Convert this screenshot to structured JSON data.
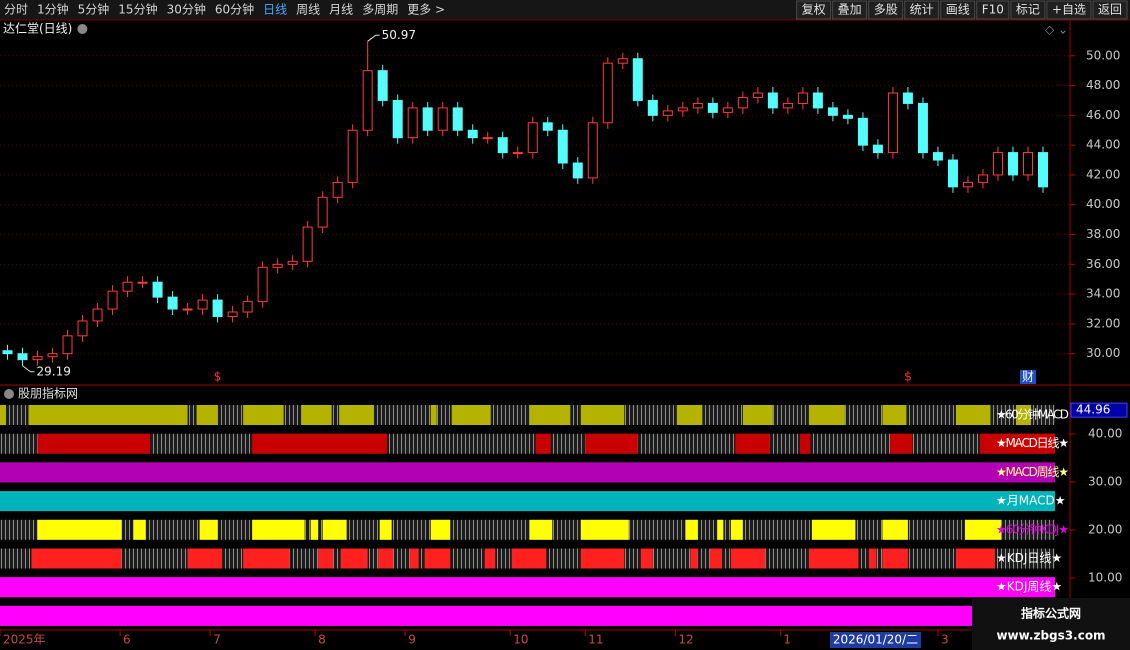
{
  "toolbar": {
    "periods": [
      "分时",
      "1分钟",
      "5分钟",
      "15分钟",
      "30分钟",
      "60分钟",
      "日线",
      "周线",
      "月线",
      "多周期",
      "更多 >"
    ],
    "active_period": 6,
    "buttons": [
      "复权",
      "叠加",
      "多股",
      "统计",
      "画线",
      "F10",
      "标记",
      "+自选",
      "返回"
    ]
  },
  "chart_data": [
    {
      "type": "candlestick",
      "title": "达仁堂(日线)",
      "up_color": "#ff3c3c",
      "down_color": "#54fcfc",
      "grid": true,
      "xlim": [
        0,
        70.3
      ],
      "ylim": [
        27.9,
        52.4
      ],
      "yticks": [
        {
          "value": 30,
          "label": "30.00"
        },
        {
          "value": 32,
          "label": "32.00"
        },
        {
          "value": 34,
          "label": "34.00"
        },
        {
          "value": 36,
          "label": "36.00"
        },
        {
          "value": 38,
          "label": "38.00"
        },
        {
          "value": 40,
          "label": "40.00"
        },
        {
          "value": 42,
          "label": "42.00"
        },
        {
          "value": 44,
          "label": "44.00"
        },
        {
          "value": 46,
          "label": "46.00"
        },
        {
          "value": 48,
          "label": "48.00"
        },
        {
          "value": 50,
          "label": "50.00"
        }
      ],
      "xticks": [
        {
          "value": 0,
          "label": "2025年"
        },
        {
          "value": 8,
          "label": "6"
        },
        {
          "value": 14,
          "label": "7"
        },
        {
          "value": 21,
          "label": "8"
        },
        {
          "value": 27,
          "label": "9"
        },
        {
          "value": 34,
          "label": "10"
        },
        {
          "value": 39,
          "label": "11"
        },
        {
          "value": 45,
          "label": "12"
        },
        {
          "value": 52,
          "label": "1"
        },
        {
          "value": 62.5,
          "label": "3"
        }
      ],
      "cursor_label": {
        "value": 55.3,
        "label": "2026/01/20/二"
      },
      "events": [
        {
          "index": 14,
          "label": "$",
          "color": "#ff3030"
        },
        {
          "index": 60,
          "label": "$",
          "color": "#ff3030"
        },
        {
          "index": 68,
          "label": "财",
          "color": "#ffffff",
          "background": "#1e50c8"
        }
      ],
      "open": [
        30.2,
        30.0,
        29.6,
        29.8,
        30.0,
        31.2,
        32.2,
        33.0,
        34.2,
        34.8,
        34.8,
        33.8,
        33.0,
        33.0,
        33.6,
        32.5,
        32.8,
        33.5,
        35.8,
        36.0,
        36.2,
        38.5,
        40.5,
        41.5,
        45.0,
        49.0,
        47.0,
        44.5,
        46.5,
        45.0,
        46.5,
        45.0,
        44.5,
        44.5,
        43.5,
        43.5,
        45.5,
        45.0,
        42.8,
        41.8,
        45.5,
        49.5,
        49.8,
        47.0,
        46.0,
        46.3,
        46.5,
        46.8,
        46.2,
        46.5,
        47.2,
        47.5,
        46.5,
        46.8,
        47.5,
        46.5,
        46.0,
        45.8,
        44.0,
        43.5,
        47.5,
        46.8,
        43.5,
        43.0,
        41.2,
        41.5,
        42.0,
        43.5,
        42.0,
        43.5
      ],
      "high": [
        30.6,
        30.4,
        30.2,
        30.4,
        31.6,
        32.6,
        33.4,
        34.6,
        35.2,
        35.2,
        35.2,
        34.2,
        33.4,
        34.0,
        34.0,
        33.2,
        33.9,
        36.2,
        36.4,
        36.6,
        38.9,
        40.9,
        41.9,
        45.4,
        50.97,
        49.4,
        47.4,
        46.9,
        46.9,
        46.9,
        46.9,
        45.4,
        44.9,
        44.9,
        43.9,
        45.9,
        45.9,
        45.4,
        43.2,
        45.9,
        49.9,
        50.2,
        50.2,
        47.4,
        46.7,
        46.9,
        47.2,
        47.2,
        46.9,
        47.6,
        47.9,
        47.9,
        47.2,
        47.9,
        47.9,
        46.9,
        46.4,
        46.2,
        44.4,
        47.9,
        47.9,
        47.2,
        43.9,
        43.4,
        41.9,
        42.4,
        43.9,
        43.9,
        43.9,
        43.9
      ],
      "low": [
        29.6,
        29.19,
        29.2,
        29.4,
        29.6,
        30.8,
        31.8,
        32.6,
        33.8,
        34.4,
        33.4,
        32.6,
        32.6,
        32.6,
        32.1,
        32.1,
        32.4,
        33.1,
        35.4,
        35.6,
        35.8,
        38.1,
        40.1,
        41.1,
        44.6,
        46.6,
        44.1,
        44.1,
        44.6,
        44.6,
        44.6,
        44.1,
        44.1,
        43.1,
        43.1,
        43.1,
        44.6,
        42.4,
        41.4,
        41.4,
        45.1,
        49.1,
        46.6,
        45.6,
        45.6,
        45.9,
        46.1,
        45.8,
        45.8,
        46.1,
        46.8,
        46.1,
        46.1,
        46.4,
        46.1,
        45.6,
        45.4,
        43.6,
        43.1,
        43.1,
        46.4,
        43.1,
        42.6,
        40.8,
        40.8,
        41.1,
        41.6,
        41.6,
        41.6,
        40.8
      ],
      "close": [
        30.0,
        29.6,
        29.8,
        30.0,
        31.2,
        32.2,
        33.0,
        34.2,
        34.8,
        34.8,
        33.8,
        33.0,
        33.0,
        33.6,
        32.5,
        32.8,
        33.5,
        35.8,
        36.0,
        36.2,
        38.5,
        40.5,
        41.5,
        45.0,
        49.0,
        47.0,
        44.5,
        46.5,
        45.0,
        46.5,
        45.0,
        44.5,
        44.5,
        43.5,
        43.5,
        45.5,
        45.0,
        42.8,
        41.8,
        45.5,
        49.5,
        49.8,
        47.0,
        46.0,
        46.3,
        46.5,
        46.8,
        46.2,
        46.5,
        47.2,
        47.5,
        46.5,
        46.8,
        47.5,
        46.5,
        46.0,
        45.8,
        44.0,
        43.5,
        47.5,
        46.8,
        43.5,
        43.0,
        41.2,
        41.5,
        42.0,
        43.5,
        42.0,
        43.5,
        41.2
      ]
    },
    {
      "type": "signal-strips",
      "title": "股朋指标网",
      "xlim": [
        0,
        70.3
      ],
      "ylim": [
        -0.8,
        50.2
      ],
      "current_value": 44.96,
      "yticks": [
        {
          "value": 10,
          "label": "10.00"
        },
        {
          "value": 20,
          "label": "20.00"
        },
        {
          "value": 30,
          "label": "30.00"
        },
        {
          "value": 40,
          "label": "40.00"
        }
      ],
      "rows": [
        {
          "name": "★60分钟MACD",
          "color": "#b4b400",
          "label_color": "#ffffff",
          "segments": [
            [
              0,
              0.4
            ],
            [
              1.9,
              12.5
            ],
            [
              13.1,
              14.5
            ],
            [
              16.2,
              18.9
            ],
            [
              20.1,
              22.1
            ],
            [
              22.6,
              24.9
            ],
            [
              28.7,
              29.1
            ],
            [
              30.1,
              32.7
            ],
            [
              35.3,
              38.0
            ],
            [
              38.7,
              41.6
            ],
            [
              45.1,
              46.8
            ],
            [
              49.5,
              51.5
            ],
            [
              53.9,
              56.3
            ],
            [
              58.8,
              60.4
            ],
            [
              63.7,
              66.0
            ],
            [
              67.7,
              68.7
            ]
          ]
        },
        {
          "name": "★MACD日线★",
          "color": "#c80000",
          "label_color": "#ffffff",
          "segments": [
            [
              2.5,
              10
            ],
            [
              16.8,
              25.8
            ],
            [
              35.7,
              36.7
            ],
            [
              39,
              42.5
            ],
            [
              49,
              51.3
            ],
            [
              53.3,
              54
            ],
            [
              59.3,
              60.8
            ],
            [
              65.3,
              70.3
            ]
          ]
        },
        {
          "name": "★MACD周线★",
          "color": "#b400b4",
          "label_color": "#ffff80",
          "segments": [
            [
              0,
              70.3
            ]
          ]
        },
        {
          "name": "★月MACD★",
          "color": "#00b4bc",
          "label_color": "#ffffff",
          "segments": [
            [
              0,
              70.3
            ]
          ]
        },
        {
          "name": "★60分钟KDJ★",
          "color": "#ffff00",
          "label_color": "#e000e0",
          "segments": [
            [
              2.5,
              8.1
            ],
            [
              8.9,
              9.7
            ],
            [
              13.3,
              14.5
            ],
            [
              16.8,
              20.3
            ],
            [
              20.7,
              21.2
            ],
            [
              21.5,
              23.1
            ],
            [
              25.3,
              26.1
            ],
            [
              28.7,
              30
            ],
            [
              35.3,
              36.8
            ],
            [
              38.7,
              41.9
            ],
            [
              45.7,
              46.5
            ],
            [
              47.8,
              48.2
            ],
            [
              48.7,
              49.5
            ],
            [
              54.1,
              57
            ],
            [
              58.8,
              60.5
            ],
            [
              64.3,
              66.7
            ]
          ]
        },
        {
          "name": "★KDJ日线★",
          "color": "#ff2020",
          "label_color": "#ffffff",
          "segments": [
            [
              2.1,
              8.1
            ],
            [
              12.5,
              14.8
            ],
            [
              16.2,
              19.3
            ],
            [
              21.2,
              22.2
            ],
            [
              22.7,
              24.5
            ],
            [
              25.2,
              26.2
            ],
            [
              27.3,
              27.9
            ],
            [
              28.3,
              30
            ],
            [
              32.3,
              33
            ],
            [
              34.1,
              36.4
            ],
            [
              38.7,
              41.6
            ],
            [
              42.7,
              43.5
            ],
            [
              46,
              46.5
            ],
            [
              47.3,
              48.1
            ],
            [
              48.7,
              51
            ],
            [
              53.9,
              57.2
            ],
            [
              57.9,
              58.4
            ],
            [
              58.8,
              60.5
            ],
            [
              63.7,
              66.3
            ]
          ]
        },
        {
          "name": "★KDJ周线★",
          "color": "#ff00ff",
          "label_color": "#ffffff",
          "segments": [
            [
              0,
              70.3
            ]
          ]
        },
        {
          "color": "#ff00ff",
          "segments": [
            [
              0,
              70.3
            ]
          ]
        }
      ]
    }
  ],
  "watermark": {
    "title": "指标公式网",
    "url": "www.zbgs3.com"
  }
}
